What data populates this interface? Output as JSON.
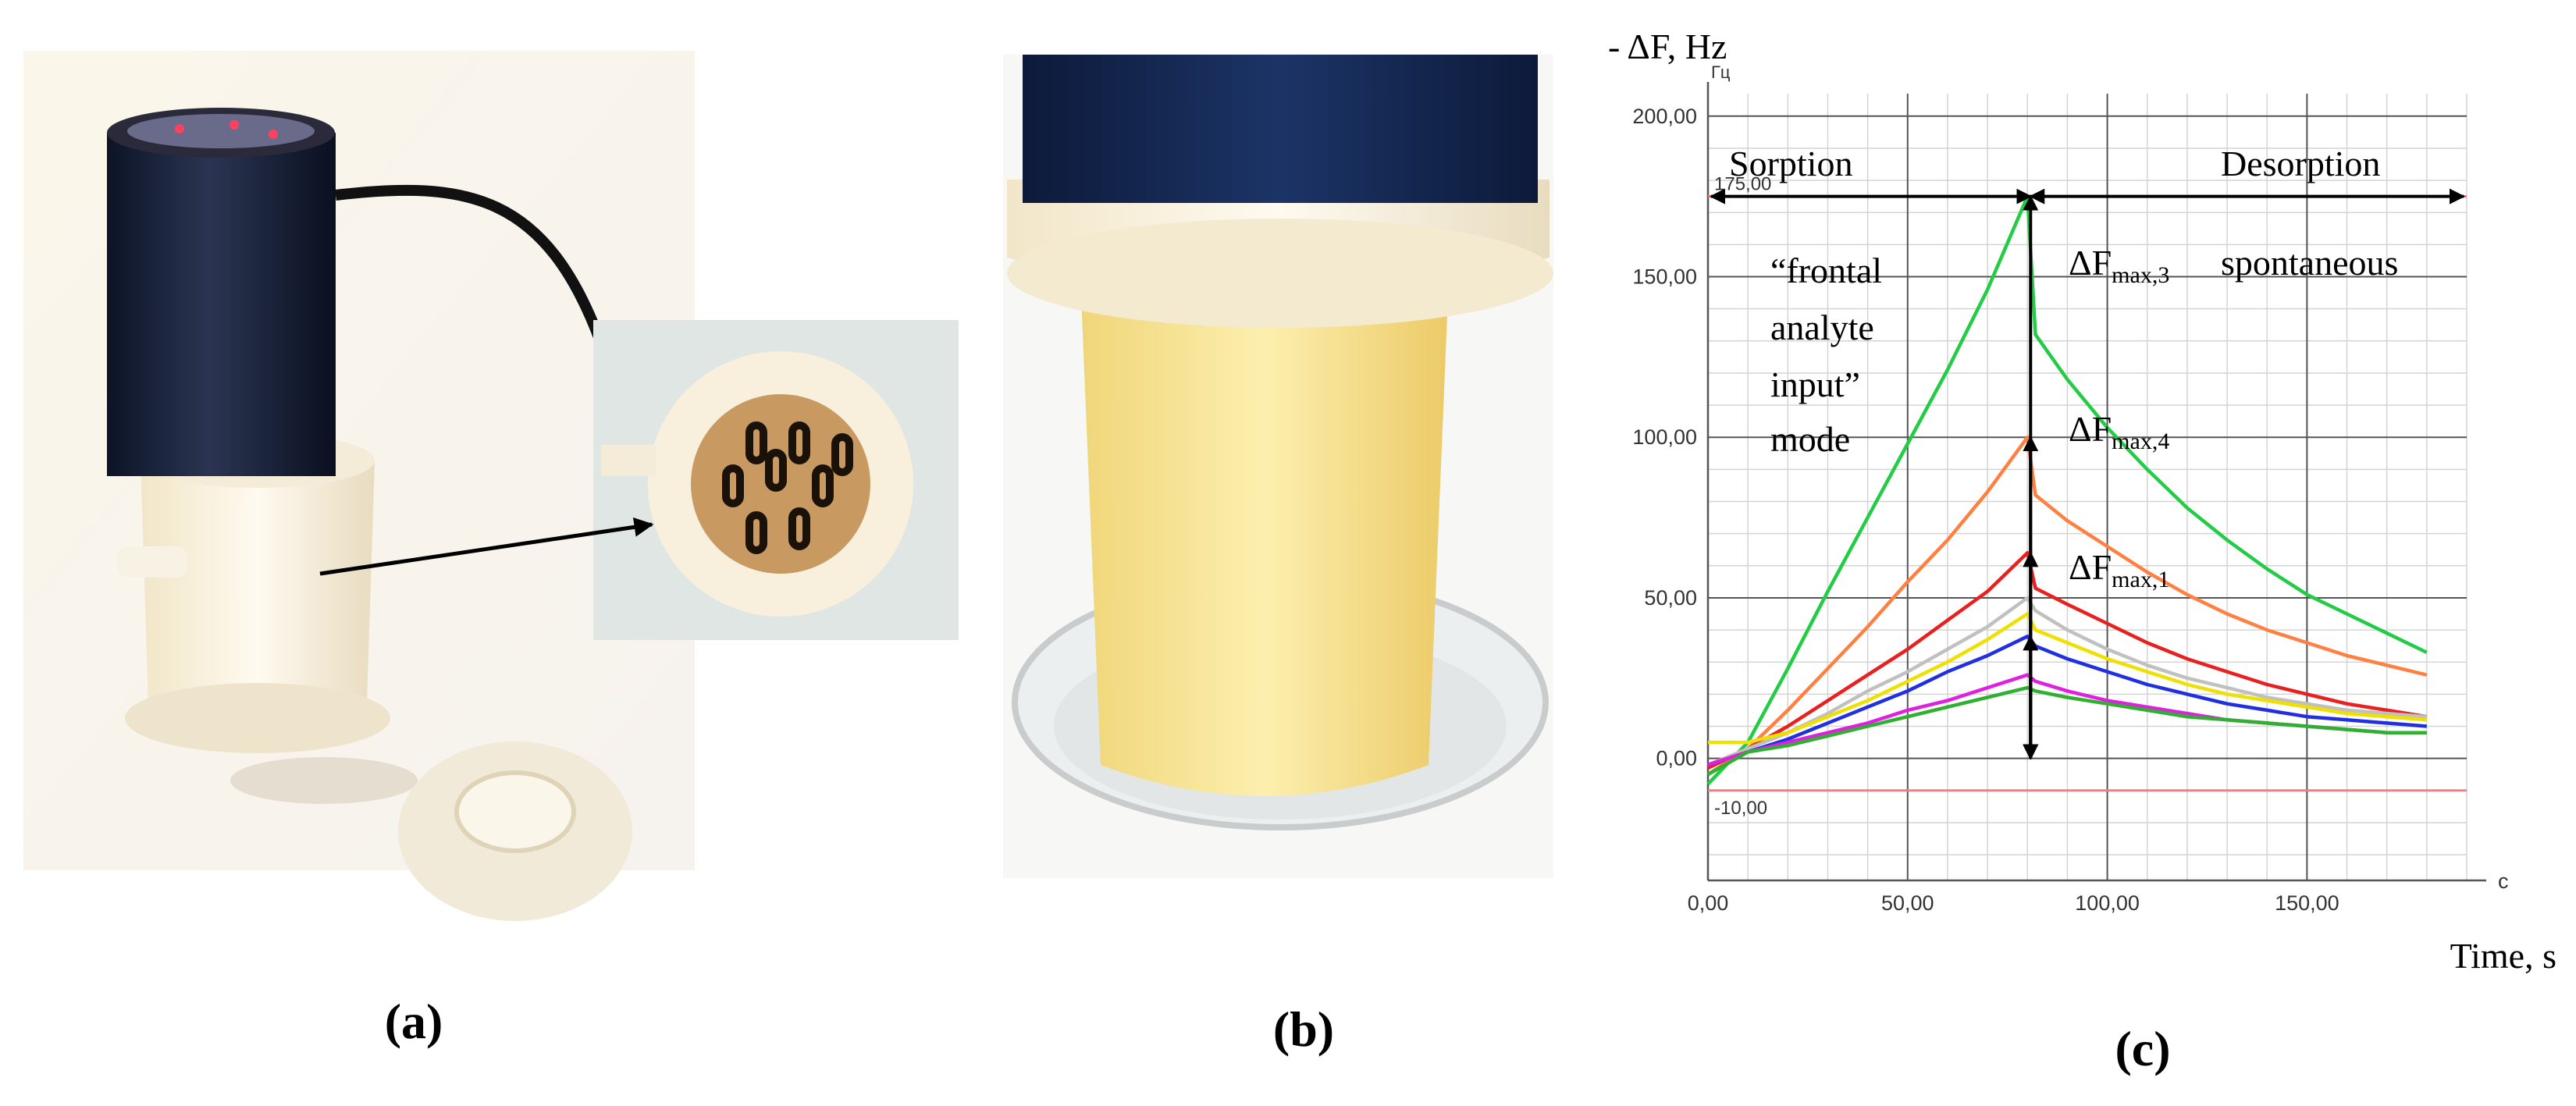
{
  "panel_labels": [
    "(a)",
    "(b)",
    "(c)"
  ],
  "chart_data": {
    "type": "line",
    "y_label": "- ΔF, Hz",
    "x_label": "Time, s",
    "y_unit": "Гц",
    "x_unit": "c",
    "xlim": [
      0,
      190
    ],
    "ylim": [
      -38,
      207
    ],
    "xticks": [
      {
        "value": 0,
        "label": "0,00"
      },
      {
        "value": 50,
        "label": "50,00"
      },
      {
        "value": 100,
        "label": "100,00"
      },
      {
        "value": 150,
        "label": "150,00"
      }
    ],
    "yticks": [
      {
        "value": 0,
        "label": "0,00"
      },
      {
        "value": 50,
        "label": "50,00"
      },
      {
        "value": 100,
        "label": "100,00"
      },
      {
        "value": 150,
        "label": "150,00"
      },
      {
        "value": 200,
        "label": "200,00"
      }
    ],
    "grid": true,
    "reference_lines": [
      {
        "value": 175,
        "label": "175,00",
        "color": "#f08080"
      },
      {
        "value": -10,
        "label": "-10,00",
        "color": "#f08080"
      }
    ],
    "x": [
      0,
      10,
      20,
      30,
      40,
      50,
      60,
      70,
      80,
      82,
      90,
      100,
      110,
      120,
      130,
      140,
      150,
      160,
      170,
      180
    ],
    "series": [
      {
        "color": "#22cc44",
        "values": [
          -8,
          5,
          28,
          52,
          75,
          98,
          121,
          146,
          175,
          132,
          118,
          103,
          90,
          78,
          68,
          59,
          51,
          45,
          39,
          33
        ]
      },
      {
        "color": "#ff8040",
        "values": [
          -5,
          3,
          15,
          28,
          41,
          55,
          68,
          83,
          100,
          82,
          74,
          66,
          58,
          51,
          45,
          40,
          36,
          32,
          29,
          26
        ]
      },
      {
        "color": "#e82020",
        "values": [
          -3,
          3,
          10,
          18,
          26,
          34,
          43,
          52,
          64,
          53,
          48,
          42,
          36,
          31,
          27,
          23,
          20,
          17,
          15,
          13
        ]
      },
      {
        "color": "#c0c0c0",
        "values": [
          -2,
          3,
          8,
          14,
          21,
          27,
          34,
          41,
          50,
          46,
          40,
          34,
          29,
          25,
          22,
          19,
          17,
          15,
          14,
          13
        ]
      },
      {
        "color": "#f0e000",
        "values": [
          5,
          5,
          8,
          13,
          18,
          24,
          30,
          37,
          45,
          40,
          36,
          31,
          27,
          23,
          20,
          18,
          16,
          14,
          13,
          12
        ]
      },
      {
        "color": "#2030e0",
        "values": [
          -2,
          2,
          6,
          11,
          16,
          21,
          27,
          32,
          38,
          35,
          31,
          27,
          23,
          20,
          17,
          15,
          13,
          12,
          11,
          10
        ]
      },
      {
        "color": "#e020e0",
        "values": [
          -2,
          2,
          5,
          8,
          11,
          15,
          18,
          22,
          26,
          24,
          21,
          18,
          16,
          14,
          12,
          11,
          10,
          9,
          8,
          8
        ]
      },
      {
        "color": "#30b030",
        "values": [
          -5,
          2,
          4,
          7,
          10,
          13,
          16,
          19,
          22,
          21,
          19,
          17,
          15,
          13,
          12,
          11,
          10,
          9,
          8,
          8
        ]
      }
    ],
    "annotations": [
      {
        "text": "Sorption"
      },
      {
        "text": "Desorption"
      },
      {
        "text": "“frontal"
      },
      {
        "text": "analyte"
      },
      {
        "text": "input”"
      },
      {
        "text": "mode"
      },
      {
        "text": "spontaneous"
      },
      {
        "text": "ΔF",
        "sub": "max,3"
      },
      {
        "text": "ΔF",
        "sub": "max,4"
      },
      {
        "text": "ΔF",
        "sub": "max,1"
      }
    ]
  }
}
